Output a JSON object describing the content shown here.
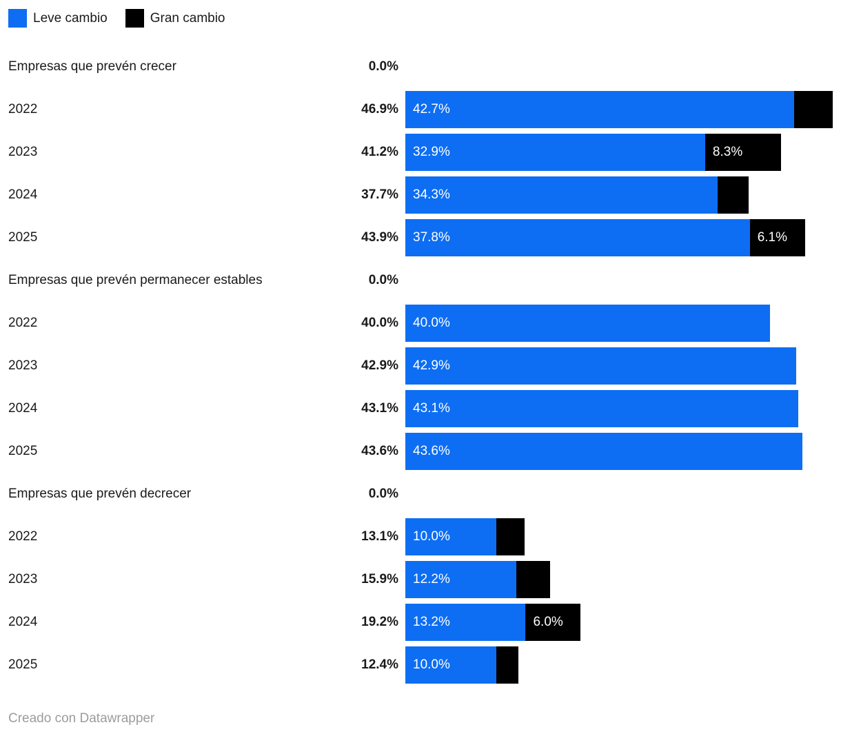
{
  "legend": {
    "items": [
      {
        "label": "Leve cambio",
        "color": "#0d6ef3"
      },
      {
        "label": "Gran cambio",
        "color": "#000000"
      }
    ]
  },
  "footer": {
    "text": "Creado con Datawrapper"
  },
  "chart_data": {
    "type": "bar",
    "orientation": "horizontal",
    "stacked": true,
    "unit": "%",
    "axis_max": 46.9,
    "grid": false,
    "legend_position": "top-left",
    "series": [
      {
        "name": "Leve cambio",
        "color": "#0d6ef3"
      },
      {
        "name": "Gran cambio",
        "color": "#000000"
      }
    ],
    "groups": [
      {
        "header": "Empresas que prevén crecer",
        "header_total": "0.0%",
        "rows": [
          {
            "label": "2022",
            "total": 46.9,
            "total_label": "46.9%",
            "segments": [
              {
                "series": "Leve cambio",
                "value": 42.7,
                "label": "42.7%"
              },
              {
                "series": "Gran cambio",
                "value": 4.2,
                "label": ""
              }
            ]
          },
          {
            "label": "2023",
            "total": 41.2,
            "total_label": "41.2%",
            "segments": [
              {
                "series": "Leve cambio",
                "value": 32.9,
                "label": "32.9%"
              },
              {
                "series": "Gran cambio",
                "value": 8.3,
                "label": "8.3%"
              }
            ]
          },
          {
            "label": "2024",
            "total": 37.7,
            "total_label": "37.7%",
            "segments": [
              {
                "series": "Leve cambio",
                "value": 34.3,
                "label": "34.3%"
              },
              {
                "series": "Gran cambio",
                "value": 3.4,
                "label": ""
              }
            ]
          },
          {
            "label": "2025",
            "total": 43.9,
            "total_label": "43.9%",
            "segments": [
              {
                "series": "Leve cambio",
                "value": 37.8,
                "label": "37.8%"
              },
              {
                "series": "Gran cambio",
                "value": 6.1,
                "label": "6.1%"
              }
            ]
          }
        ]
      },
      {
        "header": "Empresas que prevén permanecer estables",
        "header_total": "0.0%",
        "rows": [
          {
            "label": "2022",
            "total": 40.0,
            "total_label": "40.0%",
            "segments": [
              {
                "series": "Leve cambio",
                "value": 40.0,
                "label": "40.0%"
              },
              {
                "series": "Gran cambio",
                "value": 0,
                "label": ""
              }
            ]
          },
          {
            "label": "2023",
            "total": 42.9,
            "total_label": "42.9%",
            "segments": [
              {
                "series": "Leve cambio",
                "value": 42.9,
                "label": "42.9%"
              },
              {
                "series": "Gran cambio",
                "value": 0,
                "label": ""
              }
            ]
          },
          {
            "label": "2024",
            "total": 43.1,
            "total_label": "43.1%",
            "segments": [
              {
                "series": "Leve cambio",
                "value": 43.1,
                "label": "43.1%"
              },
              {
                "series": "Gran cambio",
                "value": 0,
                "label": ""
              }
            ]
          },
          {
            "label": "2025",
            "total": 43.6,
            "total_label": "43.6%",
            "segments": [
              {
                "series": "Leve cambio",
                "value": 43.6,
                "label": "43.6%"
              },
              {
                "series": "Gran cambio",
                "value": 0,
                "label": ""
              }
            ]
          }
        ]
      },
      {
        "header": "Empresas que prevén decrecer",
        "header_total": "0.0%",
        "rows": [
          {
            "label": "2022",
            "total": 13.1,
            "total_label": "13.1%",
            "segments": [
              {
                "series": "Leve cambio",
                "value": 10.0,
                "label": "10.0%"
              },
              {
                "series": "Gran cambio",
                "value": 3.1,
                "label": ""
              }
            ]
          },
          {
            "label": "2023",
            "total": 15.9,
            "total_label": "15.9%",
            "segments": [
              {
                "series": "Leve cambio",
                "value": 12.2,
                "label": "12.2%"
              },
              {
                "series": "Gran cambio",
                "value": 3.7,
                "label": ""
              }
            ]
          },
          {
            "label": "2024",
            "total": 19.2,
            "total_label": "19.2%",
            "segments": [
              {
                "series": "Leve cambio",
                "value": 13.2,
                "label": "13.2%"
              },
              {
                "series": "Gran cambio",
                "value": 6.0,
                "label": "6.0%"
              }
            ]
          },
          {
            "label": "2025",
            "total": 12.4,
            "total_label": "12.4%",
            "segments": [
              {
                "series": "Leve cambio",
                "value": 10.0,
                "label": "10.0%"
              },
              {
                "series": "Gran cambio",
                "value": 2.4,
                "label": ""
              }
            ]
          }
        ]
      }
    ]
  }
}
